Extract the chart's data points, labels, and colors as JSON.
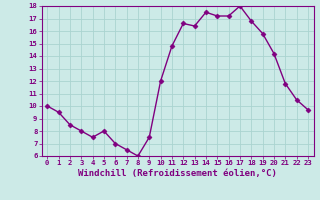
{
  "x": [
    0,
    1,
    2,
    3,
    4,
    5,
    6,
    7,
    8,
    9,
    10,
    11,
    12,
    13,
    14,
    15,
    16,
    17,
    18,
    19,
    20,
    21,
    22,
    23
  ],
  "y": [
    10,
    9.5,
    8.5,
    8.0,
    7.5,
    8.0,
    7.0,
    6.5,
    6.0,
    7.5,
    12.0,
    14.8,
    16.6,
    16.4,
    17.5,
    17.2,
    17.2,
    18.0,
    16.8,
    15.8,
    14.2,
    11.8,
    10.5,
    9.7
  ],
  "line_color": "#800080",
  "marker": "D",
  "markersize": 2.5,
  "linewidth": 1.0,
  "xlabel": "Windchill (Refroidissement éolien,°C)",
  "xlabel_fontsize": 6.5,
  "bg_color": "#cceae7",
  "grid_color": "#aad4d0",
  "label_color": "#800080",
  "ylim": [
    6,
    18
  ],
  "yticks": [
    6,
    7,
    8,
    9,
    10,
    11,
    12,
    13,
    14,
    15,
    16,
    17,
    18
  ],
  "xticks": [
    0,
    1,
    2,
    3,
    4,
    5,
    6,
    7,
    8,
    9,
    10,
    11,
    12,
    13,
    14,
    15,
    16,
    17,
    18,
    19,
    20,
    21,
    22,
    23
  ],
  "tick_fontsize": 5.2
}
